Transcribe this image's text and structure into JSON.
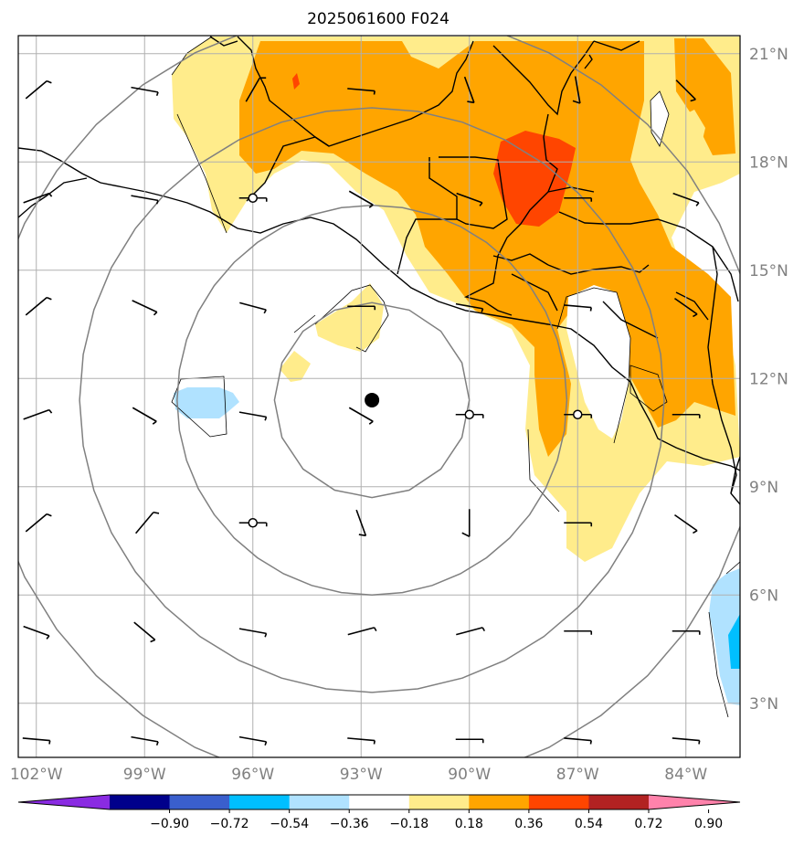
{
  "title": "2025061600 F024",
  "map": {
    "lon_range": [
      -102.5,
      -82.5
    ],
    "lat_range": [
      1.5,
      21.5
    ],
    "lon_ticks": [
      {
        "value": -102,
        "label": "102°W"
      },
      {
        "value": -99,
        "label": "99°W"
      },
      {
        "value": -96,
        "label": "96°W"
      },
      {
        "value": -93,
        "label": "93°W"
      },
      {
        "value": -90,
        "label": "90°W"
      },
      {
        "value": -87,
        "label": "87°W"
      },
      {
        "value": -84,
        "label": "84°W"
      }
    ],
    "lat_ticks": [
      {
        "value": 3,
        "label": "3°N"
      },
      {
        "value": 6,
        "label": "6°N"
      },
      {
        "value": 9,
        "label": "9°N"
      },
      {
        "value": 12,
        "label": "12°N"
      },
      {
        "value": 15,
        "label": "15°N"
      },
      {
        "value": 18,
        "label": "18°N"
      },
      {
        "value": 21,
        "label": "21°N"
      }
    ],
    "grid": true,
    "storm_center": {
      "lon": -92.7,
      "lat": 11.4
    },
    "range_rings_deg": [
      2.7,
      5.4,
      8.1,
      10.8
    ],
    "station_markers": [
      {
        "lon": -96,
        "lat": 17
      },
      {
        "lon": -90,
        "lat": 11
      },
      {
        "lon": -87,
        "lat": 11
      },
      {
        "lon": -96,
        "lat": 8
      }
    ],
    "wind_barbs": {
      "lons": [
        -102,
        -99,
        -96,
        -93,
        -90,
        -87,
        -84
      ],
      "lats": [
        20,
        17,
        14,
        11,
        8,
        5,
        2
      ]
    }
  },
  "colorbar": {
    "colors": [
      "#8a2be2",
      "#00008b",
      "#3a5fcd",
      "#00bfff",
      "#b0e2ff",
      "#ffffff",
      "#ffec8b",
      "#ffa500",
      "#ff4500",
      "#b22222",
      "#ff82ab"
    ],
    "tick_labels": [
      "−0.90",
      "−0.72",
      "−0.54",
      "−0.36",
      "−0.18",
      "0.18",
      "0.36",
      "0.54",
      "0.72",
      "0.90"
    ]
  }
}
